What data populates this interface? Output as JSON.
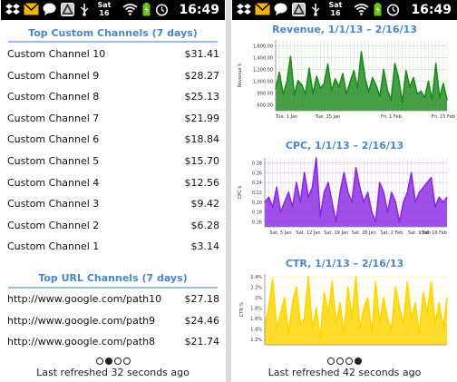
{
  "status_bar": {
    "time": "16:49",
    "calendar_day": "Sat",
    "calendar_date": "16"
  },
  "left_screen": {
    "custom_channels": {
      "title": "Top Custom Channels (7 days)",
      "rows": [
        {
          "name": "Custom Channel 10",
          "value": "$31.41"
        },
        {
          "name": "Custom Channel 9",
          "value": "$28.27"
        },
        {
          "name": "Custom Channel 8",
          "value": "$25.13"
        },
        {
          "name": "Custom Channel 7",
          "value": "$21.99"
        },
        {
          "name": "Custom Channel 6",
          "value": "$18.84"
        },
        {
          "name": "Custom Channel 5",
          "value": "$15.70"
        },
        {
          "name": "Custom Channel 4",
          "value": "$12.56"
        },
        {
          "name": "Custom Channel 3",
          "value": "$9.42"
        },
        {
          "name": "Custom Channel 2",
          "value": "$6.28"
        },
        {
          "name": "Custom Channel 1",
          "value": "$3.14"
        }
      ]
    },
    "url_channels": {
      "title": "Top URL Channels (7 days)",
      "rows": [
        {
          "name": "http://www.google.com/path10",
          "value": "$27.18"
        },
        {
          "name": "http://www.google.com/path9",
          "value": "$24.46"
        },
        {
          "name": "http://www.google.com/path8",
          "value": "$21.74"
        }
      ]
    },
    "pager": {
      "count": 4,
      "active": 1
    },
    "last_refreshed": "Last refreshed 32 seconds ago"
  },
  "right_screen": {
    "pager": {
      "count": 4,
      "active": 3
    },
    "last_refreshed": "Last refreshed 42 seconds ago"
  },
  "chart_data": [
    {
      "type": "area",
      "title": "Revenue, 1/1/13 – 2/16/13",
      "ylabel": "Revenue $",
      "xlabel": "",
      "color": "#1e8a1e",
      "ylim": [
        500,
        1700
      ],
      "yticks": [
        600,
        800,
        1000,
        1200,
        1400,
        1600
      ],
      "ytick_labels": [
        "600.00",
        "800.00",
        "1,000.00",
        "1,200.00",
        "1,400.00",
        "1,600.00"
      ],
      "x_tick_labels": [
        "Tue. 1 Jan",
        "Tue. 15 Jan",
        "Fri. 1 Feb",
        "Fri. 15 Feb"
      ],
      "x_tick_index": [
        0,
        14,
        31,
        45
      ],
      "grid": true,
      "values": [
        870,
        1150,
        780,
        980,
        1420,
        760,
        1010,
        940,
        780,
        1220,
        790,
        1080,
        880,
        960,
        1290,
        840,
        1040,
        900,
        1130,
        780,
        990,
        1180,
        880,
        1500,
        1050,
        820,
        1060,
        920,
        740,
        1200,
        850,
        680,
        1300,
        1050,
        640,
        1180,
        900,
        1060,
        780,
        830,
        720,
        1000,
        680,
        1300,
        720,
        960,
        680
      ]
    },
    {
      "type": "area",
      "title": "CPC, 1/1/13 – 2/16/13",
      "ylabel": "CPC $",
      "xlabel": "",
      "color": "#8a2be2",
      "ylim": [
        0.15,
        0.29
      ],
      "yticks": [
        0.16,
        0.18,
        0.2,
        0.22,
        0.24,
        0.26,
        0.28
      ],
      "ytick_labels": [
        "0.16",
        "0.18",
        "0.20",
        "0.22",
        "0.24",
        "0.26",
        "0.28"
      ],
      "x_tick_labels": [
        "Sat. 5 Jan",
        "Sat. 12 Jan",
        "Sat. 19 Jan",
        "Sat. 26 Jan",
        "Sat. 2 Feb",
        "Sat. 9 Feb",
        "Sat. 16 Feb"
      ],
      "x_tick_index": [
        4,
        11,
        18,
        25,
        32,
        39,
        46
      ],
      "grid": true,
      "values": [
        0.2,
        0.21,
        0.19,
        0.23,
        0.18,
        0.2,
        0.22,
        0.19,
        0.24,
        0.2,
        0.26,
        0.21,
        0.23,
        0.29,
        0.17,
        0.22,
        0.24,
        0.2,
        0.16,
        0.22,
        0.26,
        0.22,
        0.2,
        0.27,
        0.23,
        0.2,
        0.22,
        0.18,
        0.16,
        0.24,
        0.22,
        0.18,
        0.22,
        0.2,
        0.16,
        0.2,
        0.22,
        0.26,
        0.2,
        0.22,
        0.23,
        0.24,
        0.25,
        0.19,
        0.21,
        0.2,
        0.21
      ]
    },
    {
      "type": "area",
      "title": "CTR, 1/1/13 – 2/16/13",
      "ylabel": "CTR %",
      "xlabel": "",
      "color": "#ffd500",
      "ylim": [
        1.1,
        2.45
      ],
      "yticks": [
        1.2,
        1.4,
        1.6,
        1.8,
        2.0,
        2.2,
        2.4
      ],
      "ytick_labels": [
        "1.2%",
        "1.4%",
        "1.6%",
        "1.8%",
        "2%",
        "2.2%",
        "2.4%"
      ],
      "grid": true,
      "values": [
        1.5,
        1.8,
        2.35,
        1.4,
        1.7,
        2.0,
        1.3,
        1.9,
        2.2,
        1.5,
        1.6,
        2.4,
        1.4,
        1.8,
        1.2,
        2.1,
        1.7,
        2.3,
        1.5,
        1.9,
        1.3,
        2.2,
        1.6,
        2.4,
        1.4,
        1.8,
        2.0,
        1.3,
        2.3,
        1.5,
        2.0,
        1.6,
        1.4,
        2.2,
        1.8,
        1.5,
        2.3,
        1.6,
        1.9,
        1.3,
        2.1,
        1.7,
        2.3,
        1.5,
        1.9,
        1.4,
        2.0
      ]
    }
  ]
}
